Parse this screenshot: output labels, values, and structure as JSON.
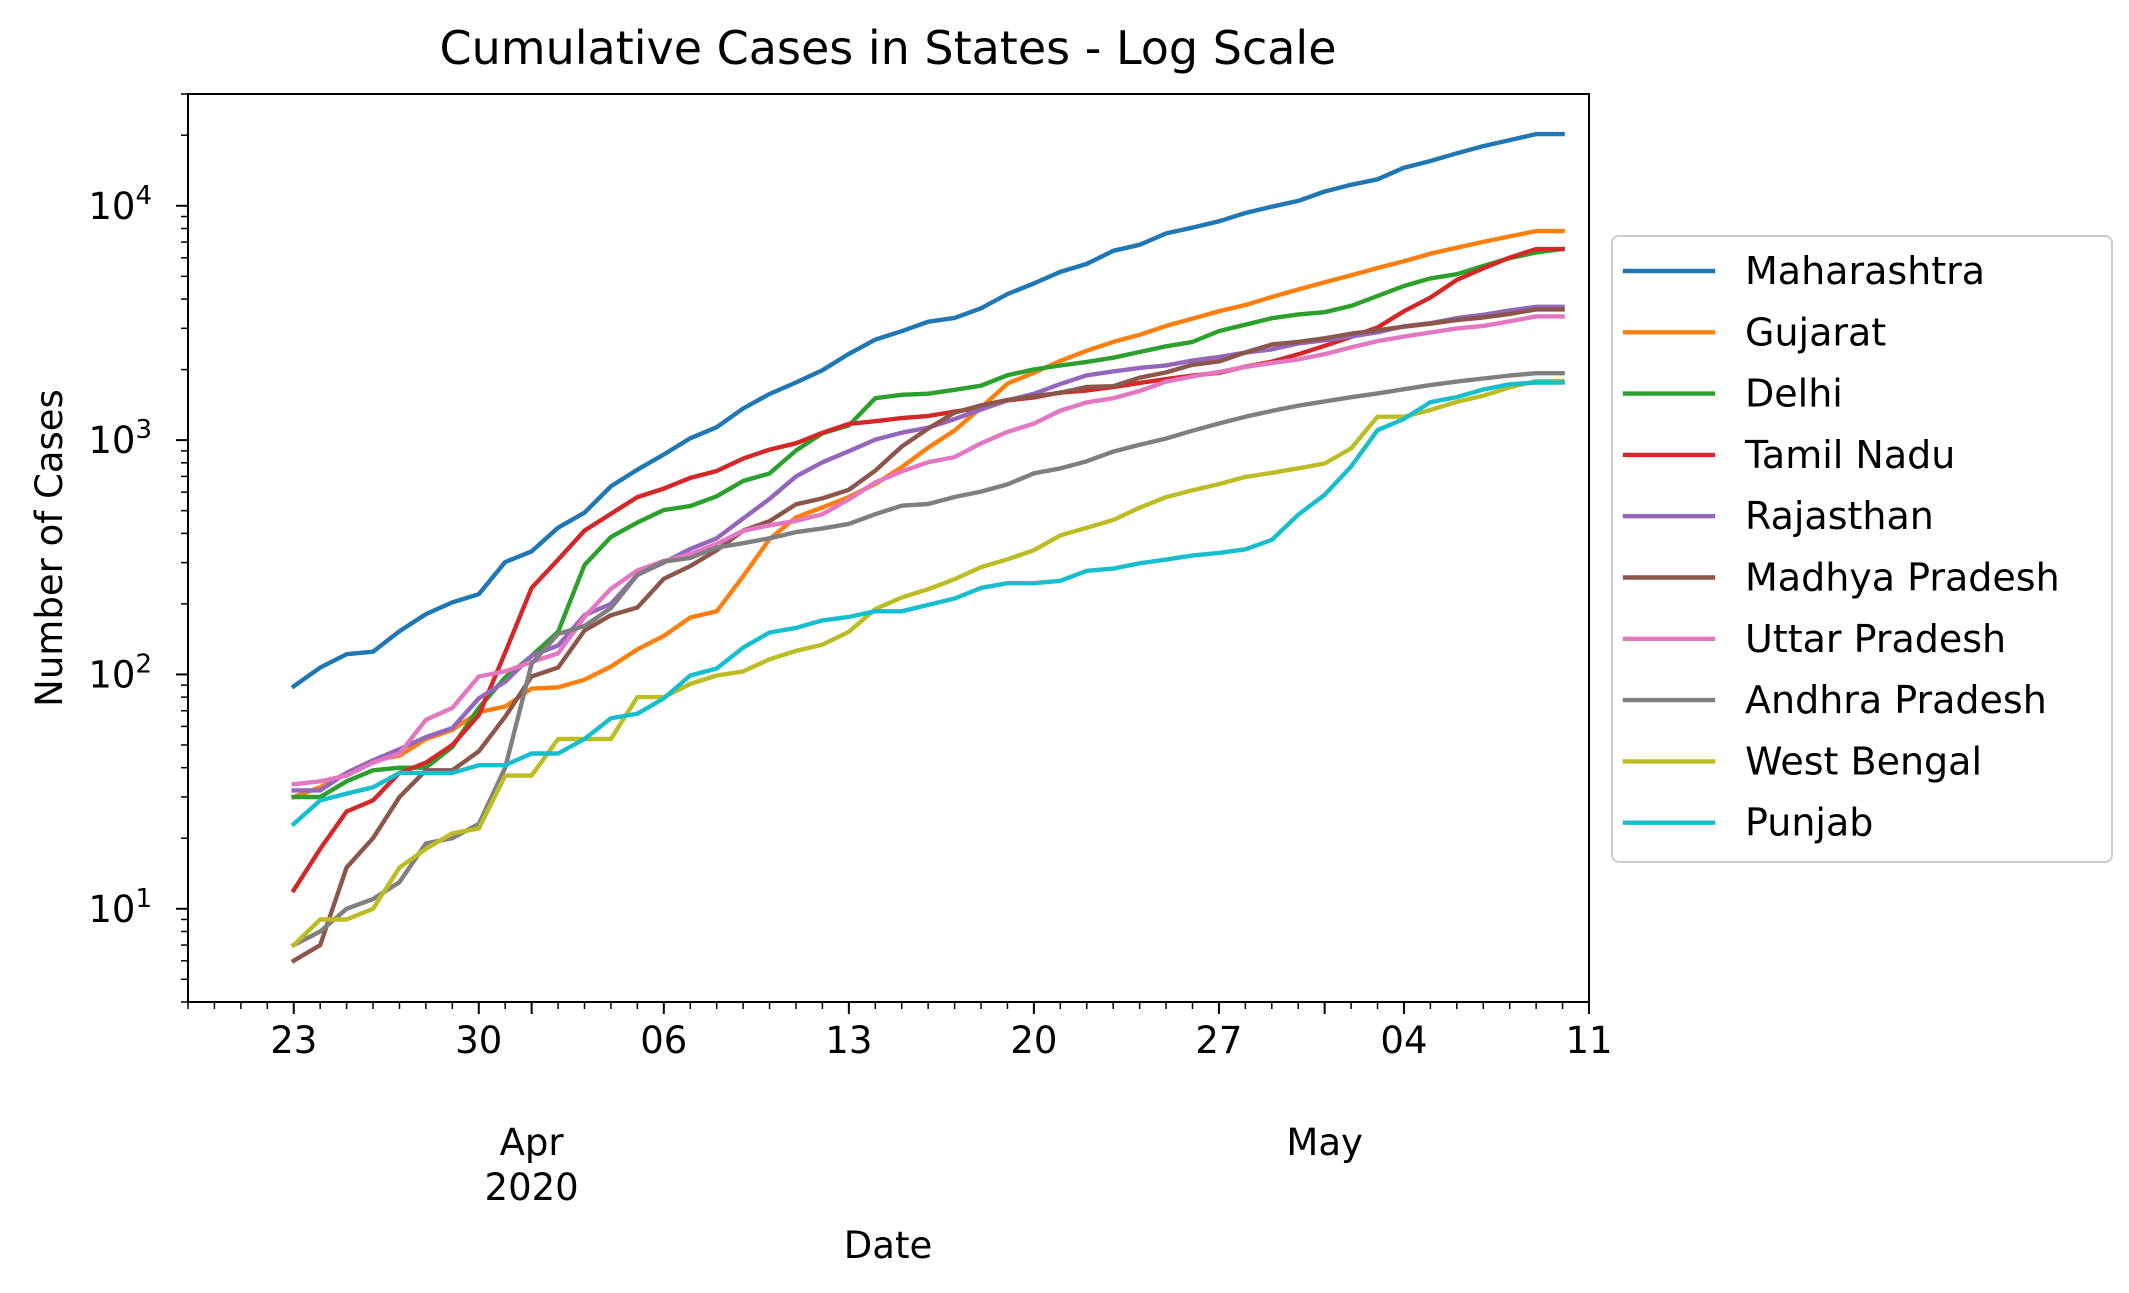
{
  "chart_data": {
    "type": "line",
    "title": "Cumulative Cases in States - Log Scale",
    "xlabel": "Date",
    "ylabel": "Number of Cases",
    "yscale": "log",
    "ylim": [
      4,
      30000
    ],
    "xlim": [
      "2020-03-19",
      "2020-05-11"
    ],
    "grid": false,
    "legend_position": "outside-right",
    "x_ticks": [
      {
        "date": "2020-03-23",
        "label": "23"
      },
      {
        "date": "2020-03-30",
        "label": "30"
      },
      {
        "date": "2020-04-06",
        "label": "06"
      },
      {
        "date": "2020-04-13",
        "label": "13"
      },
      {
        "date": "2020-04-20",
        "label": "20"
      },
      {
        "date": "2020-04-27",
        "label": "27"
      },
      {
        "date": "2020-05-04",
        "label": "04"
      },
      {
        "date": "2020-05-11",
        "label": "11"
      }
    ],
    "x_month_labels": [
      {
        "date": "2020-04-01",
        "label": "Apr",
        "year": "2020"
      },
      {
        "date": "2020-05-01",
        "label": "May",
        "year": ""
      }
    ],
    "y_ticks": [
      {
        "value": 10,
        "base": "10",
        "exp": "1"
      },
      {
        "value": 100,
        "base": "10",
        "exp": "2"
      },
      {
        "value": 1000,
        "base": "10",
        "exp": "3"
      },
      {
        "value": 10000,
        "base": "10",
        "exp": "4"
      }
    ],
    "x": [
      "2020-03-23",
      "2020-03-24",
      "2020-03-25",
      "2020-03-26",
      "2020-03-27",
      "2020-03-28",
      "2020-03-29",
      "2020-03-30",
      "2020-03-31",
      "2020-04-01",
      "2020-04-02",
      "2020-04-03",
      "2020-04-04",
      "2020-04-05",
      "2020-04-06",
      "2020-04-07",
      "2020-04-08",
      "2020-04-09",
      "2020-04-10",
      "2020-04-11",
      "2020-04-12",
      "2020-04-13",
      "2020-04-14",
      "2020-04-15",
      "2020-04-16",
      "2020-04-17",
      "2020-04-18",
      "2020-04-19",
      "2020-04-20",
      "2020-04-21",
      "2020-04-22",
      "2020-04-23",
      "2020-04-24",
      "2020-04-25",
      "2020-04-26",
      "2020-04-27",
      "2020-04-28",
      "2020-04-29",
      "2020-04-30",
      "2020-05-01",
      "2020-05-02",
      "2020-05-03",
      "2020-05-04",
      "2020-05-05",
      "2020-05-06",
      "2020-05-07",
      "2020-05-08",
      "2020-05-09",
      "2020-05-10"
    ],
    "series": [
      {
        "name": "Maharashtra",
        "color": "#1f77b4",
        "values": [
          89,
          107,
          122,
          125,
          153,
          181,
          203,
          220,
          302,
          335,
          423,
          490,
          635,
          748,
          868,
          1018,
          1135,
          1364,
          1574,
          1761,
          1985,
          2334,
          2684,
          2916,
          3202,
          3323,
          3651,
          4203,
          4666,
          5221,
          5652,
          6427,
          6817,
          7628,
          8068,
          8590,
          9318,
          9915,
          10498,
          11506,
          12296,
          12974,
          14541,
          15525,
          16758,
          17974,
          19063,
          20228,
          20228
        ]
      },
      {
        "name": "Gujarat",
        "color": "#ff7f0e",
        "values": [
          30,
          33,
          38,
          43,
          45,
          53,
          58,
          69,
          73,
          87,
          88,
          95,
          108,
          128,
          146,
          175,
          186,
          262,
          378,
          468,
          516,
          572,
          650,
          766,
          929,
          1099,
          1376,
          1743,
          1939,
          2178,
          2407,
          2624,
          2815,
          3071,
          3301,
          3548,
          3774,
          4082,
          4395,
          4721,
          5054,
          5428,
          5804,
          6245,
          6625,
          7012,
          7403,
          7796,
          7796
        ]
      },
      {
        "name": "Delhi",
        "color": "#2ca02c",
        "values": [
          30,
          30,
          35,
          39,
          40,
          40,
          49,
          72,
          97,
          120,
          152,
          293,
          386,
          445,
          503,
          523,
          576,
          669,
          720,
          903,
          1069,
          1154,
          1510,
          1561,
          1578,
          1640,
          1707,
          1893,
          2003,
          2081,
          2156,
          2248,
          2376,
          2514,
          2625,
          2918,
          3108,
          3314,
          3439,
          3515,
          3738,
          4122,
          4549,
          4898,
          5104,
          5532,
          5980,
          6318,
          6542
        ]
      },
      {
        "name": "Tamil Nadu",
        "color": "#d62728",
        "values": [
          12,
          18,
          26,
          29,
          38,
          42,
          50,
          67,
          124,
          234,
          309,
          411,
          485,
          571,
          621,
          690,
          738,
          834,
          911,
          969,
          1075,
          1173,
          1204,
          1242,
          1267,
          1323,
          1372,
          1477,
          1520,
          1596,
          1629,
          1683,
          1755,
          1821,
          1885,
          1937,
          2058,
          2162,
          2323,
          2526,
          2757,
          3023,
          3550,
          4058,
          4829,
          5409,
          6009,
          6535,
          6535
        ]
      },
      {
        "name": "Rajasthan",
        "color": "#9467bd",
        "values": [
          32,
          32,
          38,
          43,
          48,
          54,
          59,
          79,
          93,
          120,
          133,
          179,
          200,
          266,
          300,
          343,
          381,
          463,
          561,
          700,
          804,
          897,
          1005,
          1076,
          1131,
          1229,
          1351,
          1478,
          1576,
          1735,
          1890,
          1964,
          2034,
          2083,
          2185,
          2262,
          2364,
          2438,
          2584,
          2666,
          2770,
          2886,
          3061,
          3158,
          3317,
          3427,
          3579,
          3708,
          3708
        ]
      },
      {
        "name": "Madhya Pradesh",
        "color": "#8c564b",
        "values": [
          6,
          7,
          15,
          20,
          30,
          39,
          39,
          47,
          66,
          98,
          107,
          154,
          179,
          193,
          256,
          290,
          339,
          411,
          451,
          532,
          564,
          614,
          741,
          938,
          1120,
          1310,
          1407,
          1485,
          1540,
          1592,
          1687,
          1699,
          1846,
          1945,
          2096,
          2165,
          2368,
          2560,
          2625,
          2719,
          2846,
          2942,
          3049,
          3138,
          3252,
          3341,
          3457,
          3614,
          3614
        ]
      },
      {
        "name": "Uttar Pradesh",
        "color": "#e377c2",
        "values": [
          34,
          35,
          37,
          42,
          46,
          64,
          72,
          98,
          103,
          113,
          123,
          176,
          232,
          278,
          305,
          326,
          361,
          410,
          433,
          452,
          483,
          558,
          660,
          735,
          805,
          846,
          969,
          1084,
          1176,
          1337,
          1449,
          1509,
          1621,
          1778,
          1868,
          1955,
          2053,
          2134,
          2211,
          2328,
          2487,
          2645,
          2766,
          2880,
          2998,
          3071,
          3214,
          3373,
          3373
        ]
      },
      {
        "name": "Andhra Pradesh",
        "color": "#7f7f7f",
        "values": [
          7,
          8,
          10,
          11,
          13,
          19,
          20,
          23,
          40,
          111,
          149,
          161,
          192,
          266,
          303,
          314,
          348,
          363,
          381,
          405,
          420,
          439,
          483,
          525,
          534,
          572,
          603,
          647,
          722,
          757,
          813,
          893,
          955,
          1016,
          1097,
          1177,
          1259,
          1332,
          1403,
          1463,
          1525,
          1583,
          1650,
          1717,
          1777,
          1833,
          1887,
          1930,
          1930
        ]
      },
      {
        "name": "West Bengal",
        "color": "#bcbd22",
        "values": [
          7,
          9,
          9,
          10,
          15,
          18,
          21,
          22,
          37,
          37,
          53,
          53,
          53,
          80,
          80,
          91,
          99,
          103,
          116,
          126,
          134,
          152,
          190,
          213,
          231,
          255,
          287,
          310,
          339,
          392,
          423,
          456,
          514,
          571,
          611,
          649,
          697,
          725,
          758,
          795,
          922,
          1259,
          1259,
          1344,
          1456,
          1548,
          1678,
          1786,
          1786
        ]
      },
      {
        "name": "Punjab",
        "color": "#17becf",
        "values": [
          23,
          29,
          31,
          33,
          38,
          38,
          38,
          41,
          41,
          46,
          46,
          53,
          65,
          68,
          79,
          99,
          106,
          130,
          151,
          158,
          170,
          176,
          186,
          186,
          198,
          211,
          234,
          245,
          245,
          251,
          277,
          283,
          298,
          309,
          322,
          330,
          342,
          375,
          480,
          585,
          772,
          1102,
          1232,
          1451,
          1526,
          1644,
          1731,
          1762,
          1762
        ]
      }
    ]
  }
}
